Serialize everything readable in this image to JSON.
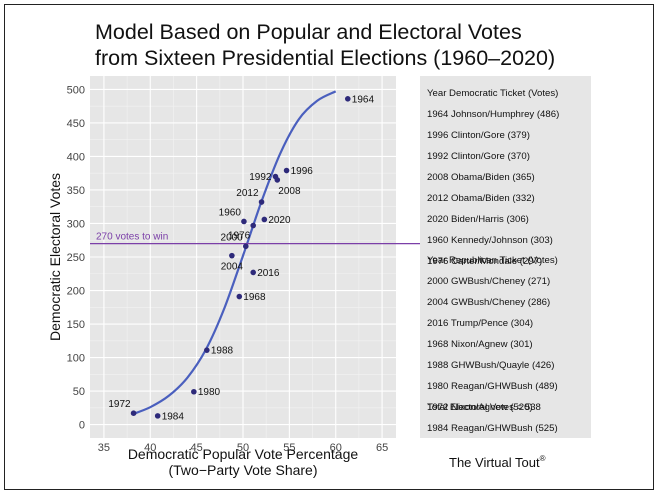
{
  "chart_data": {
    "type": "scatter",
    "title_lines": [
      "Model Based on Popular and Electoral Votes",
      "from Sixteen Presidential Elections (1960–2020)"
    ],
    "xlabel_lines": [
      "Democratic Popular Vote Percentage",
      "(Two−Party Vote Share)"
    ],
    "ylabel": "Democratic Electoral Votes",
    "xlim": [
      33.5,
      66.5
    ],
    "ylim": [
      -20,
      520
    ],
    "xticks": [
      35,
      40,
      45,
      50,
      55,
      60,
      65
    ],
    "yticks": [
      0,
      50,
      100,
      150,
      200,
      250,
      300,
      350,
      400,
      450,
      500
    ],
    "grid": true,
    "points": [
      {
        "label": "1964",
        "x": 61.3,
        "y": 486,
        "label_pos": "right"
      },
      {
        "label": "1996",
        "x": 54.7,
        "y": 379,
        "label_pos": "right"
      },
      {
        "label": "1992",
        "x": 53.5,
        "y": 370,
        "label_pos": "left"
      },
      {
        "label": "2008",
        "x": 53.7,
        "y": 365,
        "label_pos": "below-right"
      },
      {
        "label": "2012",
        "x": 52.0,
        "y": 332,
        "label_pos": "above-left"
      },
      {
        "label": "2020",
        "x": 52.3,
        "y": 306,
        "label_pos": "right"
      },
      {
        "label": "1960",
        "x": 50.1,
        "y": 303,
        "label_pos": "above-left"
      },
      {
        "label": "1976",
        "x": 51.1,
        "y": 297,
        "label_pos": "below-left"
      },
      {
        "label": "2000",
        "x": 50.3,
        "y": 266,
        "label_pos": "above-left"
      },
      {
        "label": "2004",
        "x": 48.8,
        "y": 252,
        "label_pos": "below"
      },
      {
        "label": "2016",
        "x": 51.1,
        "y": 227,
        "label_pos": "right"
      },
      {
        "label": "1968",
        "x": 49.6,
        "y": 191,
        "label_pos": "right"
      },
      {
        "label": "1988",
        "x": 46.1,
        "y": 111,
        "label_pos": "right"
      },
      {
        "label": "1980",
        "x": 44.7,
        "y": 49,
        "label_pos": "right"
      },
      {
        "label": "1972",
        "x": 38.2,
        "y": 17,
        "label_pos": "above-left"
      },
      {
        "label": "1984",
        "x": 40.8,
        "y": 13,
        "label_pos": "right"
      }
    ],
    "curve": {
      "x": [
        38,
        40,
        42,
        44,
        46,
        48,
        50,
        52,
        54,
        56,
        58,
        60
      ],
      "y": [
        15,
        26,
        43,
        70,
        112,
        174,
        252,
        333,
        404,
        455,
        483,
        497
      ]
    },
    "threshold": {
      "y": 270,
      "label": "270 votes to win"
    },
    "colors": {
      "point": "#2e2a7a",
      "curve": "#4a5fbe",
      "threshold": "#7b3fa8",
      "panel": "#e6e6e6",
      "grid": "#ffffff"
    }
  },
  "side_panel": {
    "dem_lines": [
      "Year  Democratic Ticket (Votes)",
      "1964 Johnson/Humphrey (486)",
      "1996 Clinton/Gore (379)",
      "1992 Clinton/Gore (370)",
      "2008 Obama/Biden (365)",
      "2012 Obama/Biden (332)",
      "2020 Biden/Harris (306)",
      "1960 Kennedy/Johnson (303)",
      "1976 Carter/Mondale (297)"
    ],
    "rep_lines": [
      "Year  Republican Ticket (Votes)",
      "2000 GWBush/Cheney (271)",
      "2004 GWBush/Cheney (286)",
      "2016 Trump/Pence (304)",
      "1968 Nixon/Agnew (301)",
      "1988 GHWBush/Quayle (426)",
      "1980 Reagan/GHWBush (489)",
      "1972 Nixon/Agnew (520)",
      "1984 Reagan/GHWBush (525)"
    ],
    "total": "Total Electoral Votes = 538"
  },
  "credit": {
    "text": "The Virtual Tout",
    "mark": "®"
  }
}
